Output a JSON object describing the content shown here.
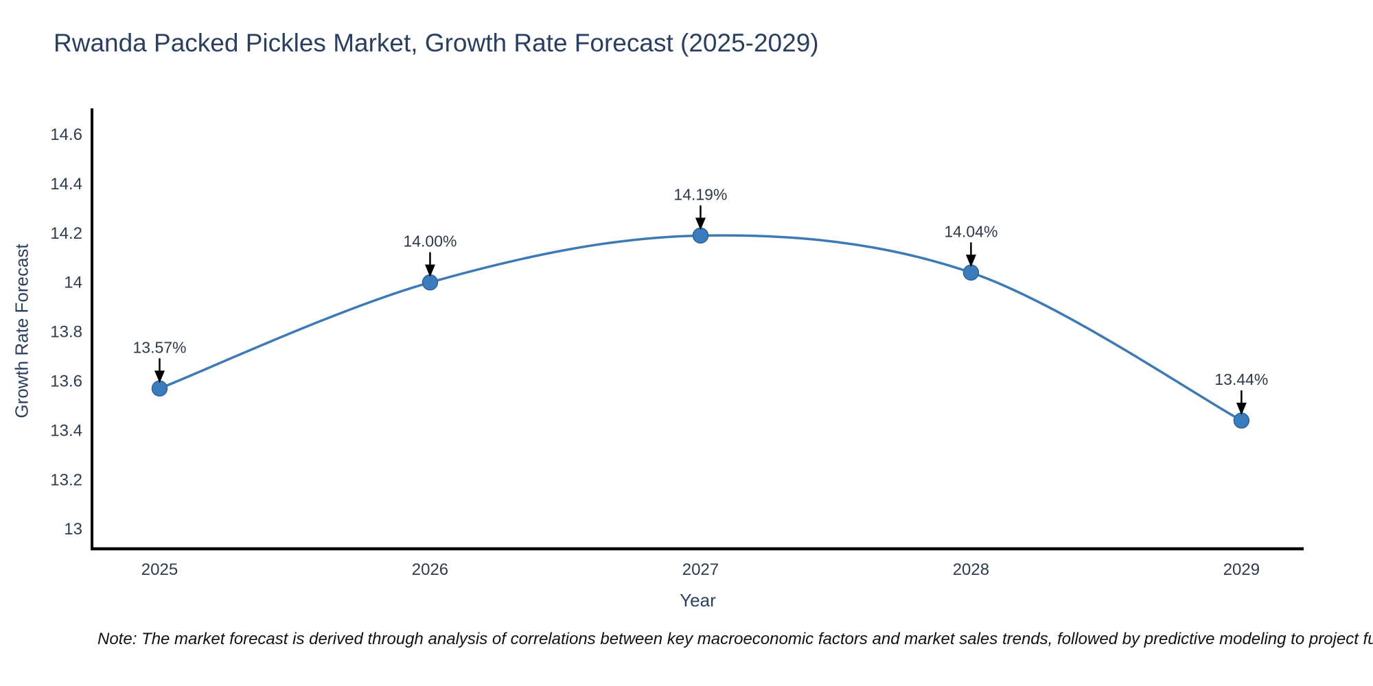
{
  "figure": {
    "note": "Note: The market forecast is derived through analysis of correlations between key macroeconomic factors and market sales trends, followed by predictive modeling to project future sal"
  },
  "chart_data": {
    "type": "line",
    "title": "Rwanda Packed Pickles Market, Growth Rate Forecast (2025-2029)",
    "xlabel": "Year",
    "ylabel": "Growth Rate Forecast",
    "categories": [
      2025,
      2026,
      2027,
      2028,
      2029
    ],
    "series": [
      {
        "name": "Growth Rate Forecast",
        "values": [
          13.57,
          14.0,
          14.19,
          14.04,
          13.44
        ]
      }
    ],
    "point_labels": [
      "13.57%",
      "14.00%",
      "14.19%",
      "14.04%",
      "13.44%"
    ],
    "xlim": [
      2024.75,
      2029.23
    ],
    "ylim": [
      12.92,
      14.7
    ],
    "yticks": [
      "13",
      "13.2",
      "13.4",
      "13.6",
      "13.8",
      "14",
      "14.2",
      "14.4",
      "14.6"
    ],
    "xticks": [
      "2025",
      "2026",
      "2027",
      "2028",
      "2029"
    ],
    "grid": false,
    "legend_position": "none",
    "line_shape": "spline",
    "marker": "circle",
    "annotation_arrows": true,
    "colors": {
      "line": "#3c79b5",
      "marker_fill": "#3a7cbe",
      "marker_edge": "#2f6396",
      "axis_line": "#000000",
      "tick_text": "#2f3b4c",
      "annotation_text": "#2e3a4a",
      "arrow": "#000000",
      "title_text": "#2a3f5f",
      "note_text": "#111111",
      "background": "#ffffff"
    }
  }
}
